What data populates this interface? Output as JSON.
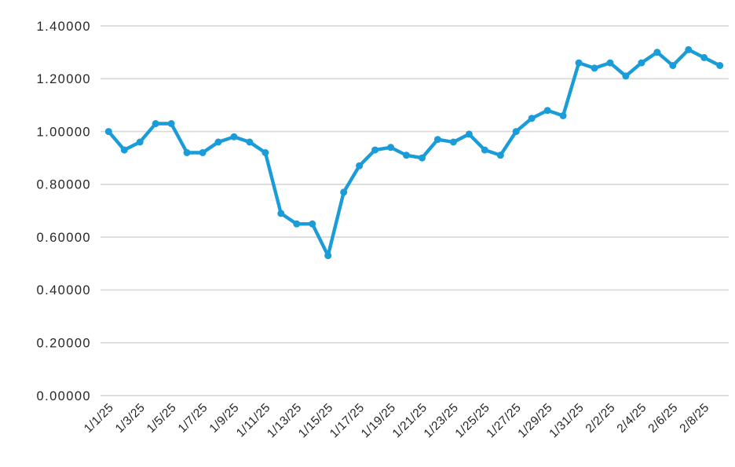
{
  "page": {
    "background": "#ffffff"
  },
  "chart_data": {
    "type": "line",
    "title": "",
    "xlabel": "",
    "ylabel": "",
    "legend": "none",
    "grid": "horizontal-only",
    "background": "#ffffff",
    "gridline_color": "#d9d9d9",
    "axis_text_color": "#262626",
    "marker": "circle",
    "ylim": [
      0,
      1.4
    ],
    "y_ticks": {
      "values": [
        1.4,
        1.2,
        1.0,
        0.8,
        0.6,
        0.4,
        0.2,
        0.0
      ],
      "labels": [
        "1.40000",
        "1.20000",
        "1.00000",
        "0.80000",
        "0.60000",
        "0.40000",
        "0.20000",
        "0.00000"
      ]
    },
    "x_label_every": 2,
    "x_tick_labels": [
      "1/1/25",
      "1/3/25",
      "1/5/25",
      "1/7/25",
      "1/9/25",
      "1/11/25",
      "1/13/25",
      "1/15/25",
      "1/17/25",
      "1/19/25",
      "1/21/25",
      "1/23/25",
      "1/25/25",
      "1/27/25",
      "1/29/25",
      "1/31/25",
      "2/2/25",
      "2/4/25",
      "2/6/25",
      "2/8/25"
    ],
    "series": [
      {
        "name": "daily-value",
        "color": "#1a9cd8",
        "values": [
          1.0,
          0.93,
          0.96,
          1.03,
          1.03,
          0.92,
          0.92,
          0.96,
          0.98,
          0.96,
          0.92,
          0.69,
          0.65,
          0.65,
          0.53,
          0.77,
          0.87,
          0.93,
          0.94,
          0.91,
          0.9,
          0.97,
          0.96,
          0.99,
          0.93,
          0.91,
          1.0,
          1.05,
          1.08,
          1.06,
          1.26,
          1.24,
          1.26,
          1.21,
          1.26,
          1.3,
          1.25,
          1.31,
          1.28,
          1.25
        ]
      }
    ]
  }
}
